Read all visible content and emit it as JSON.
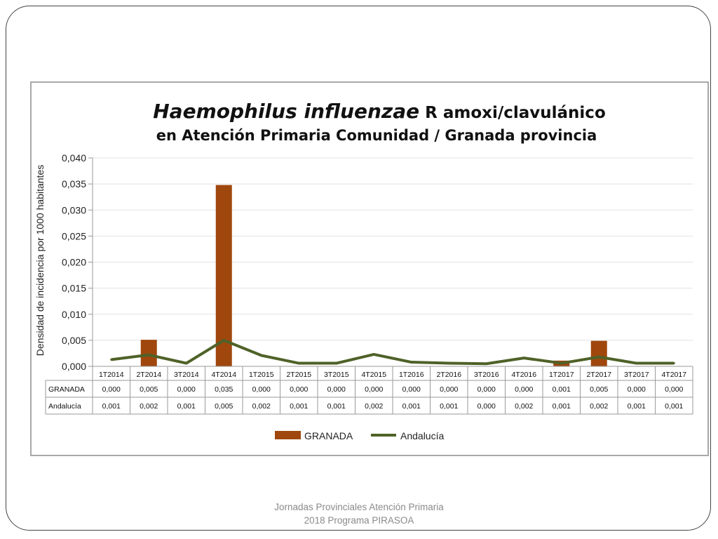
{
  "footer": {
    "line1": "Jornadas Provinciales Atención Primaria",
    "line2": "2018  Programa PIRASOA"
  },
  "colors": {
    "bar": "#a0470d",
    "line": "#4f6228",
    "grid": "#e2e2e2"
  },
  "chart_data": {
    "type": "bar",
    "title_italic": "Haemophilus influenzae",
    "title_rest": " R amoxi/clavulánico",
    "subtitle": "en Atención Primaria Comunidad / Granada provincia",
    "ylabel": "Densidad de incidencia por 1000 habitantes",
    "ylim": [
      0,
      0.04
    ],
    "yticks": [
      "0,000",
      "0,005",
      "0,010",
      "0,015",
      "0,020",
      "0,025",
      "0,030",
      "0,035",
      "0,040"
    ],
    "grid": true,
    "legend": "bottom",
    "categories": [
      "1T2014",
      "2T2014",
      "3T2014",
      "4T2014",
      "1T2015",
      "2T2015",
      "3T2015",
      "4T2015",
      "1T2016",
      "2T2016",
      "3T2016",
      "4T2016",
      "1T2017",
      "2T2017",
      "3T2017",
      "4T2017"
    ],
    "series": [
      {
        "name": "GRANADA",
        "kind": "bar",
        "values": [
          0.0,
          0.0051,
          0.0,
          0.0348,
          0.0,
          0.0,
          0.0,
          0.0,
          0.0,
          0.0,
          0.0,
          0.0,
          0.0011,
          0.0049,
          0.0,
          0.0
        ],
        "labels": [
          "0,000",
          "0,005",
          "0,000",
          "0,035",
          "0,000",
          "0,000",
          "0,000",
          "0,000",
          "0,000",
          "0,000",
          "0,000",
          "0,000",
          "0,001",
          "0,005",
          "0,000",
          "0,000"
        ]
      },
      {
        "name": "Andalucía",
        "kind": "line",
        "values": [
          0.0013,
          0.0022,
          0.0006,
          0.005,
          0.0021,
          0.0006,
          0.0006,
          0.0023,
          0.0008,
          0.0006,
          0.0005,
          0.0016,
          0.0006,
          0.0018,
          0.0006,
          0.0006
        ],
        "labels": [
          "0,001",
          "0,002",
          "0,001",
          "0,005",
          "0,002",
          "0,001",
          "0,001",
          "0,002",
          "0,001",
          "0,001",
          "0,000",
          "0,002",
          "0,001",
          "0,002",
          "0,001",
          "0,001"
        ]
      }
    ]
  }
}
